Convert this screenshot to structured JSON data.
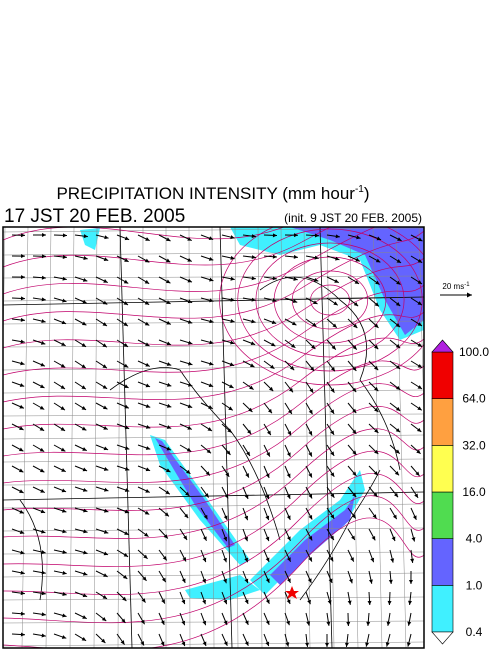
{
  "header": {
    "title_parts": [
      "PRECIPITATION INTENSITY (mm hour",
      "-1",
      ")"
    ],
    "valid_time": "17 JST 20 FEB. 2005",
    "init_time": "(init. 9 JST 20 FEB. 2005)"
  },
  "wind_reference": {
    "label_parts": [
      "20 ms",
      "-1"
    ]
  },
  "colorbar": {
    "levels": [
      {
        "value": 0.4,
        "label": "0.4"
      },
      {
        "value": 1,
        "label": "1.0"
      },
      {
        "value": 4,
        "label": "4.0"
      },
      {
        "value": 16,
        "label": "16.0"
      },
      {
        "value": 32,
        "label": "32.0"
      },
      {
        "value": 64,
        "label": "64.0"
      },
      {
        "value": 100,
        "label": "100.0"
      }
    ],
    "colors": [
      "#40f0ff",
      "#6464ff",
      "#50dc50",
      "#ffff50",
      "#ffa040",
      "#f00000"
    ],
    "under_color": "#ffffff",
    "over_color": "#b020e0"
  }
}
